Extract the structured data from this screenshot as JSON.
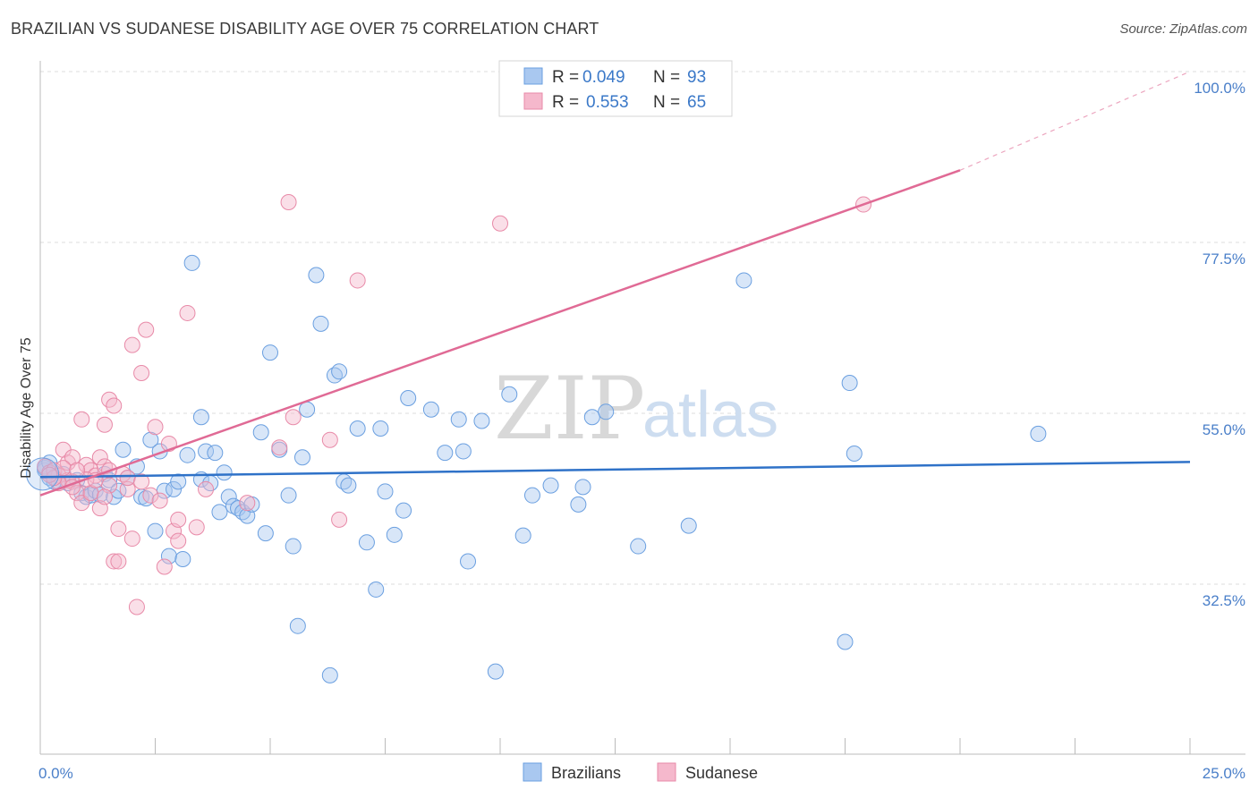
{
  "title": "BRAZILIAN VS SUDANESE DISABILITY AGE OVER 75 CORRELATION CHART",
  "source": "Source: ZipAtlas.com",
  "watermark": {
    "zip": "ZIP",
    "atlas": "atlas"
  },
  "legend": {
    "rows": [
      {
        "r_label": "R =",
        "r_value": "0.049",
        "n_label": "N =",
        "n_value": "93",
        "color": "#a9c8f0"
      },
      {
        "r_label": "R =",
        "r_value": "0.553",
        "n_label": "N =",
        "n_value": "65",
        "color": "#f5b8cc"
      }
    ]
  },
  "bottom_legend": [
    {
      "label": "Brazilians",
      "color": "#a9c8f0"
    },
    {
      "label": "Sudanese",
      "color": "#f5b8cc"
    }
  ],
  "chart_data": {
    "type": "scatter",
    "title": "BRAZILIAN VS SUDANESE DISABILITY AGE OVER 75 CORRELATION CHART",
    "xlabel": "",
    "ylabel": "Disability Age Over 75",
    "xlim": [
      0,
      25
    ],
    "ylim": [
      15,
      102
    ],
    "x_tick_labels": [
      {
        "value": 0,
        "label": "0.0%"
      },
      {
        "value": 25,
        "label": "25.0%"
      }
    ],
    "y_ticks": [
      {
        "value": 32.5,
        "label": "32.5%"
      },
      {
        "value": 55.0,
        "label": "55.0%"
      },
      {
        "value": 77.5,
        "label": "77.5%"
      },
      {
        "value": 100.0,
        "label": "100.0%"
      }
    ],
    "grid": true,
    "series": [
      {
        "name": "Brazilians",
        "color": "#6a9fe0",
        "fill": "#a9c8f0",
        "trend": {
          "x0": 0,
          "y0": 46.6,
          "x1": 25,
          "y1": 48.6,
          "color": "#2f72c8"
        },
        "points": [
          [
            0.1,
            47.5
          ],
          [
            0.2,
            46.5
          ],
          [
            0.3,
            47.2
          ],
          [
            0.4,
            46.0
          ],
          [
            0.5,
            47.0
          ],
          [
            0.6,
            45.8
          ],
          [
            0.8,
            46.2
          ],
          [
            0.9,
            44.5
          ],
          [
            1.0,
            44.0
          ],
          [
            1.1,
            44.2
          ],
          [
            1.2,
            44.8
          ],
          [
            1.3,
            44.3
          ],
          [
            1.4,
            47.0
          ],
          [
            1.5,
            46.2
          ],
          [
            1.6,
            44.0
          ],
          [
            1.7,
            44.8
          ],
          [
            1.8,
            50.2
          ],
          [
            1.9,
            46.5
          ],
          [
            2.1,
            48.0
          ],
          [
            2.2,
            44.0
          ],
          [
            2.3,
            43.8
          ],
          [
            2.4,
            51.5
          ],
          [
            2.5,
            39.5
          ],
          [
            2.6,
            50.0
          ],
          [
            2.7,
            44.8
          ],
          [
            2.8,
            36.2
          ],
          [
            2.9,
            45.0
          ],
          [
            3.0,
            46.0
          ],
          [
            3.1,
            35.8
          ],
          [
            3.2,
            49.5
          ],
          [
            3.3,
            74.8
          ],
          [
            3.5,
            46.3
          ],
          [
            3.5,
            54.5
          ],
          [
            3.6,
            50.0
          ],
          [
            3.7,
            45.8
          ],
          [
            3.8,
            49.8
          ],
          [
            3.9,
            42.0
          ],
          [
            4.0,
            47.2
          ],
          [
            4.1,
            44.0
          ],
          [
            4.2,
            42.8
          ],
          [
            4.3,
            42.5
          ],
          [
            4.4,
            42.0
          ],
          [
            4.5,
            41.5
          ],
          [
            4.6,
            43.0
          ],
          [
            4.8,
            52.5
          ],
          [
            4.9,
            39.2
          ],
          [
            5.0,
            63.0
          ],
          [
            5.2,
            50.2
          ],
          [
            5.4,
            44.2
          ],
          [
            5.5,
            37.5
          ],
          [
            5.6,
            27.0
          ],
          [
            5.7,
            49.2
          ],
          [
            5.8,
            55.5
          ],
          [
            6.0,
            73.2
          ],
          [
            6.1,
            66.8
          ],
          [
            6.3,
            20.5
          ],
          [
            6.4,
            60.0
          ],
          [
            6.5,
            60.5
          ],
          [
            6.6,
            46.0
          ],
          [
            6.7,
            45.5
          ],
          [
            6.9,
            53.0
          ],
          [
            7.1,
            38.0
          ],
          [
            7.3,
            31.8
          ],
          [
            7.4,
            53.0
          ],
          [
            7.5,
            44.7
          ],
          [
            7.7,
            39.0
          ],
          [
            7.9,
            42.2
          ],
          [
            8.0,
            57.0
          ],
          [
            8.5,
            55.5
          ],
          [
            8.8,
            49.8
          ],
          [
            9.1,
            54.2
          ],
          [
            9.2,
            50.0
          ],
          [
            9.3,
            35.5
          ],
          [
            9.6,
            54.0
          ],
          [
            9.9,
            21.0
          ],
          [
            10.2,
            57.5
          ],
          [
            10.5,
            38.9
          ],
          [
            10.7,
            44.2
          ],
          [
            11.1,
            45.5
          ],
          [
            11.7,
            43.0
          ],
          [
            11.8,
            45.3
          ],
          [
            12.0,
            54.5
          ],
          [
            12.3,
            55.2
          ],
          [
            13.0,
            37.5
          ],
          [
            14.1,
            40.2
          ],
          [
            15.3,
            72.5
          ],
          [
            17.5,
            24.9
          ],
          [
            17.6,
            59.0
          ],
          [
            17.7,
            49.7
          ],
          [
            21.7,
            52.3
          ],
          [
            0.1,
            47.8
          ],
          [
            0.2,
            48.5
          ],
          [
            0.3,
            46.0
          ]
        ]
      },
      {
        "name": "Sudanese",
        "color": "#e88aa8",
        "fill": "#f5b8cc",
        "trend": {
          "x0": 0,
          "y0": 44.2,
          "x1": 20.0,
          "y1": 87.0,
          "dash_to_x": 25,
          "dash_to_y": 100.0,
          "color": "#e06a95"
        },
        "points": [
          [
            0.1,
            48.0
          ],
          [
            0.2,
            47.2
          ],
          [
            0.3,
            47.5
          ],
          [
            0.4,
            46.8
          ],
          [
            0.5,
            50.2
          ],
          [
            0.6,
            48.5
          ],
          [
            0.7,
            46.0
          ],
          [
            0.7,
            49.2
          ],
          [
            0.8,
            44.5
          ],
          [
            0.9,
            43.2
          ],
          [
            0.9,
            54.2
          ],
          [
            1.0,
            48.2
          ],
          [
            1.1,
            47.5
          ],
          [
            1.1,
            44.5
          ],
          [
            1.2,
            46.8
          ],
          [
            1.3,
            49.2
          ],
          [
            1.3,
            42.5
          ],
          [
            1.4,
            53.5
          ],
          [
            1.4,
            48.0
          ],
          [
            1.5,
            56.8
          ],
          [
            1.5,
            47.5
          ],
          [
            1.6,
            56.0
          ],
          [
            1.6,
            35.5
          ],
          [
            1.7,
            39.8
          ],
          [
            1.7,
            35.5
          ],
          [
            1.8,
            47.0
          ],
          [
            1.9,
            45.0
          ],
          [
            2.0,
            64.0
          ],
          [
            2.0,
            38.5
          ],
          [
            2.1,
            29.5
          ],
          [
            2.2,
            60.3
          ],
          [
            2.3,
            66.0
          ],
          [
            2.4,
            44.2
          ],
          [
            2.5,
            53.2
          ],
          [
            2.6,
            43.5
          ],
          [
            2.7,
            34.8
          ],
          [
            2.8,
            51.0
          ],
          [
            2.9,
            39.5
          ],
          [
            3.0,
            41.0
          ],
          [
            3.0,
            38.2
          ],
          [
            3.2,
            68.2
          ],
          [
            3.4,
            40.0
          ],
          [
            3.6,
            45.0
          ],
          [
            4.5,
            43.2
          ],
          [
            5.2,
            50.5
          ],
          [
            5.4,
            82.8
          ],
          [
            5.5,
            54.5
          ],
          [
            6.3,
            51.5
          ],
          [
            6.5,
            41.0
          ],
          [
            6.9,
            72.5
          ],
          [
            10.0,
            80.0
          ],
          [
            17.9,
            82.5
          ],
          [
            1.0,
            46.3
          ],
          [
            0.6,
            46.2
          ],
          [
            0.4,
            45.8
          ],
          [
            0.3,
            46.5
          ],
          [
            0.5,
            47.8
          ],
          [
            0.8,
            47.5
          ],
          [
            1.2,
            46.2
          ],
          [
            1.5,
            45.5
          ],
          [
            1.9,
            46.5
          ],
          [
            2.2,
            46.0
          ],
          [
            0.2,
            46.9
          ],
          [
            0.7,
            45.3
          ],
          [
            1.4,
            44.0
          ]
        ]
      }
    ]
  }
}
